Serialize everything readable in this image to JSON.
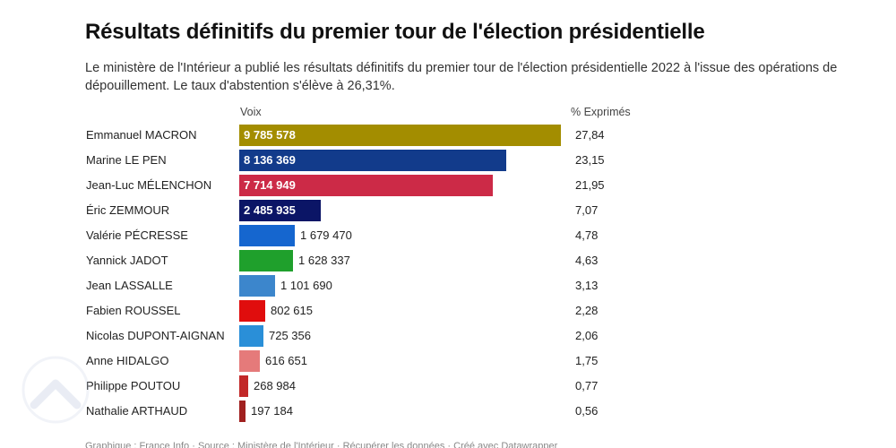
{
  "header": {
    "title": "Résultats définitifs du premier tour de l'élection présidentielle",
    "subtitle": "Le ministère de l'Intérieur a publié les résultats définitifs du premier tour de l'élection présidentielle 2022 à l'issue des opérations de dépouillement. Le taux d'abstention s'élève à 26,31%."
  },
  "columns": {
    "votes": "Voix",
    "pct": "% Exprimés"
  },
  "chart_data": {
    "type": "bar",
    "orientation": "horizontal",
    "title": "Résultats définitifs du premier tour de l'élection présidentielle",
    "xlabel": "Voix",
    "ylabel": "",
    "xlim": [
      0,
      9785578
    ],
    "categories": [
      "Emmanuel MACRON",
      "Marine LE PEN",
      "Jean-Luc MÉLENCHON",
      "Éric ZEMMOUR",
      "Valérie PÉCRESSE",
      "Yannick JADOT",
      "Jean LASSALLE",
      "Fabien ROUSSEL",
      "Nicolas DUPONT-AIGNAN",
      "Anne HIDALGO",
      "Philippe POUTOU",
      "Nathalie ARTHAUD"
    ],
    "values": [
      9785578,
      8136369,
      7714949,
      2485935,
      1679470,
      1628337,
      1101690,
      802615,
      725356,
      616651,
      268984,
      197184
    ],
    "value_labels": [
      "9 785 578",
      "8 136 369",
      "7 714 949",
      "2 485 935",
      "1 679 470",
      "1 628 337",
      "1 101 690",
      "802 615",
      "725 356",
      "616 651",
      "268 984",
      "197 184"
    ],
    "pct_labels": [
      "27,84",
      "23,15",
      "21,95",
      "7,07",
      "4,78",
      "4,63",
      "3,13",
      "2,28",
      "2,06",
      "1,75",
      "0,77",
      "0,56"
    ],
    "colors": [
      "#a38d00",
      "#123b8b",
      "#cc2a47",
      "#0b1566",
      "#1566cf",
      "#1fa02c",
      "#3c86cc",
      "#e00d0d",
      "#2a8fd8",
      "#e57a7a",
      "#c22828",
      "#a0201f"
    ]
  },
  "footer": {
    "text": "Graphique : France Info · Source : Ministère de l'Intérieur · Récupérer les données · Créé avec Datawrapper"
  }
}
